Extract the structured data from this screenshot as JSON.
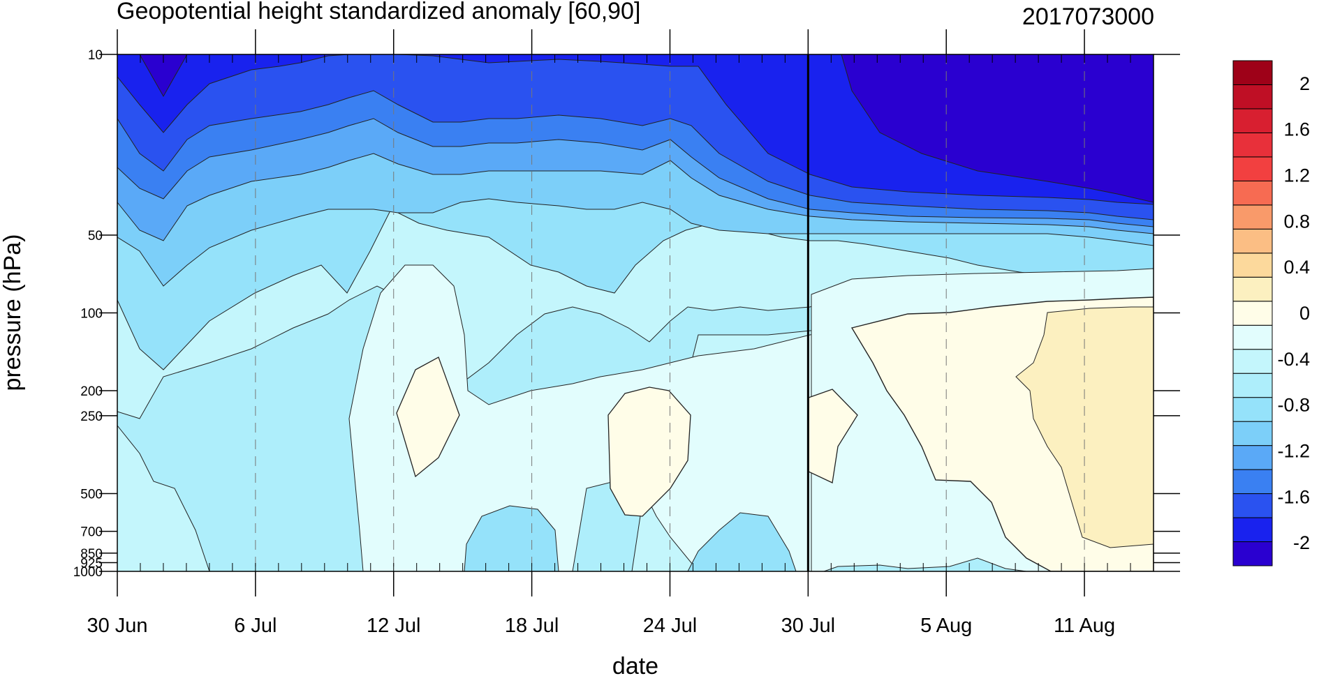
{
  "chart_data": {
    "type": "heatmap",
    "plot_kind": "filled-contour time-pressure section",
    "title": "Geopotential height standardized anomaly [60,90]",
    "date_stamp": "2017073000",
    "xlabel": "date",
    "ylabel": "pressure (hPa)",
    "x_ticks": [
      "30 Jun",
      "6 Jul",
      "12 Jul",
      "18 Jul",
      "24 Jul",
      "30 Jul",
      "5 Aug",
      "11 Aug"
    ],
    "x_range": [
      "30 Jun",
      "14 Aug"
    ],
    "y_ticks": [
      10,
      50,
      100,
      200,
      250,
      500,
      700,
      850,
      925,
      1000
    ],
    "y_range": [
      1000,
      10
    ],
    "y_scale": "log",
    "grid": "dashed vertical lines at labeled dates",
    "forecast_start_line": "30 Jul",
    "colorbar": {
      "labels": [
        "2",
        "1.6",
        "1.2",
        "0.8",
        "0.4",
        "0",
        "-0.4",
        "-0.8",
        "-1.2",
        "-1.6",
        "-2"
      ],
      "levels": [
        -2.2,
        -2,
        -1.8,
        -1.6,
        -1.4,
        -1.2,
        -1,
        -0.8,
        -0.6,
        -0.4,
        -0.2,
        0,
        0.2,
        0.4,
        0.6,
        0.8,
        1,
        1.2,
        1.4,
        1.6,
        1.8,
        2,
        2.2
      ],
      "colors": [
        "#2a00d0",
        "#1922ee",
        "#2a52f0",
        "#3a80f2",
        "#5aa9f7",
        "#7ccff9",
        "#95e2fa",
        "#aeeefb",
        "#c4f6fc",
        "#e2fdfd",
        "#fffde8",
        "#fcf0c0",
        "#fcd99c",
        "#fbbe84",
        "#f99a6a",
        "#f76b52",
        "#f24040",
        "#e8303a",
        "#d81f30",
        "#bf0f25",
        "#9e0118"
      ]
    },
    "series": [
      {
        "name": "10 hPa",
        "values": [
          -1.8,
          -2.0,
          -1.8,
          -1.6,
          -1.6,
          -1.6,
          -1.8,
          -2.0,
          -2.2,
          -2.2,
          -2.2,
          -2.2
        ]
      },
      {
        "name": "50 hPa",
        "values": [
          -1.0,
          -1.4,
          -0.8,
          -0.8,
          -0.6,
          -0.6,
          -0.8,
          -0.8,
          -0.8,
          -0.8,
          -0.6,
          -1.0
        ]
      },
      {
        "name": "100 hPa",
        "values": [
          -0.8,
          -1.2,
          -0.6,
          -0.6,
          -0.2,
          -0.6,
          -0.4,
          -0.4,
          -0.2,
          -0.2,
          0.0,
          0.2
        ]
      },
      {
        "name": "250 hPa",
        "values": [
          -0.4,
          -0.4,
          -0.4,
          -0.2,
          0.0,
          -0.2,
          0.0,
          0.0,
          0.0,
          0.2,
          0.2,
          0.2
        ]
      },
      {
        "name": "1000 hPa",
        "values": [
          -0.4,
          -0.4,
          -0.4,
          -0.2,
          -0.6,
          -0.2,
          -0.2,
          -0.2,
          -0.2,
          -0.2,
          0.0,
          0.0
        ]
      }
    ]
  }
}
